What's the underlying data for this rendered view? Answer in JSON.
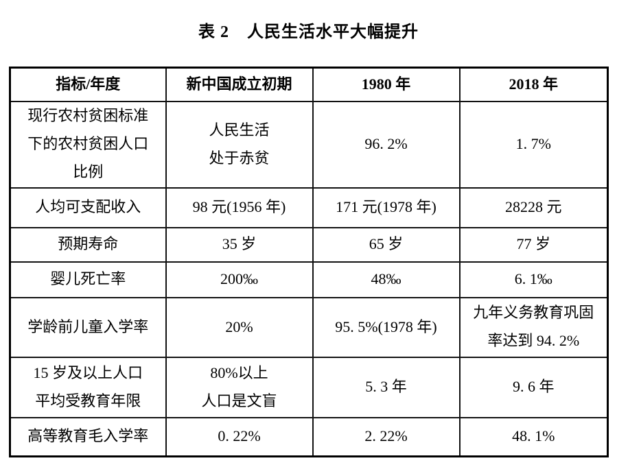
{
  "colors": {
    "background": "#ffffff",
    "text": "#000000",
    "border_outer": "#000000",
    "border_inner": "#111111"
  },
  "caption": {
    "number": "表 2",
    "title": "人民生活水平大幅提升"
  },
  "table": {
    "headers": [
      "指标/年度",
      "新中国成立初期",
      "1980 年",
      "2018 年"
    ],
    "rows": [
      {
        "c0": "现行农村贫困标准\n下的农村贫困人口\n比例",
        "c1": "人民生活\n处于赤贫",
        "c2": "96. 2%",
        "c3": "1. 7%"
      },
      {
        "c0": "人均可支配收入",
        "c1": "98 元(1956 年)",
        "c2": "171 元(1978 年)",
        "c3": "28228 元"
      },
      {
        "c0": "预期寿命",
        "c1": "35 岁",
        "c2": "65 岁",
        "c3": "77 岁"
      },
      {
        "c0": "婴儿死亡率",
        "c1": "200‰",
        "c2": "48‰",
        "c3": "6. 1‰"
      },
      {
        "c0": "学龄前儿童入学率",
        "c1": "20%",
        "c2": "95. 5%(1978 年)",
        "c3": "九年义务教育巩固\n率达到 94. 2%"
      },
      {
        "c0": "15 岁及以上人口\n平均受教育年限",
        "c1": "80%以上\n人口是文盲",
        "c2": "5. 3 年",
        "c3": "9. 6 年"
      },
      {
        "c0": "高等教育毛入学率",
        "c1": "0. 22%",
        "c2": "2. 22%",
        "c3": "48. 1%"
      }
    ]
  }
}
